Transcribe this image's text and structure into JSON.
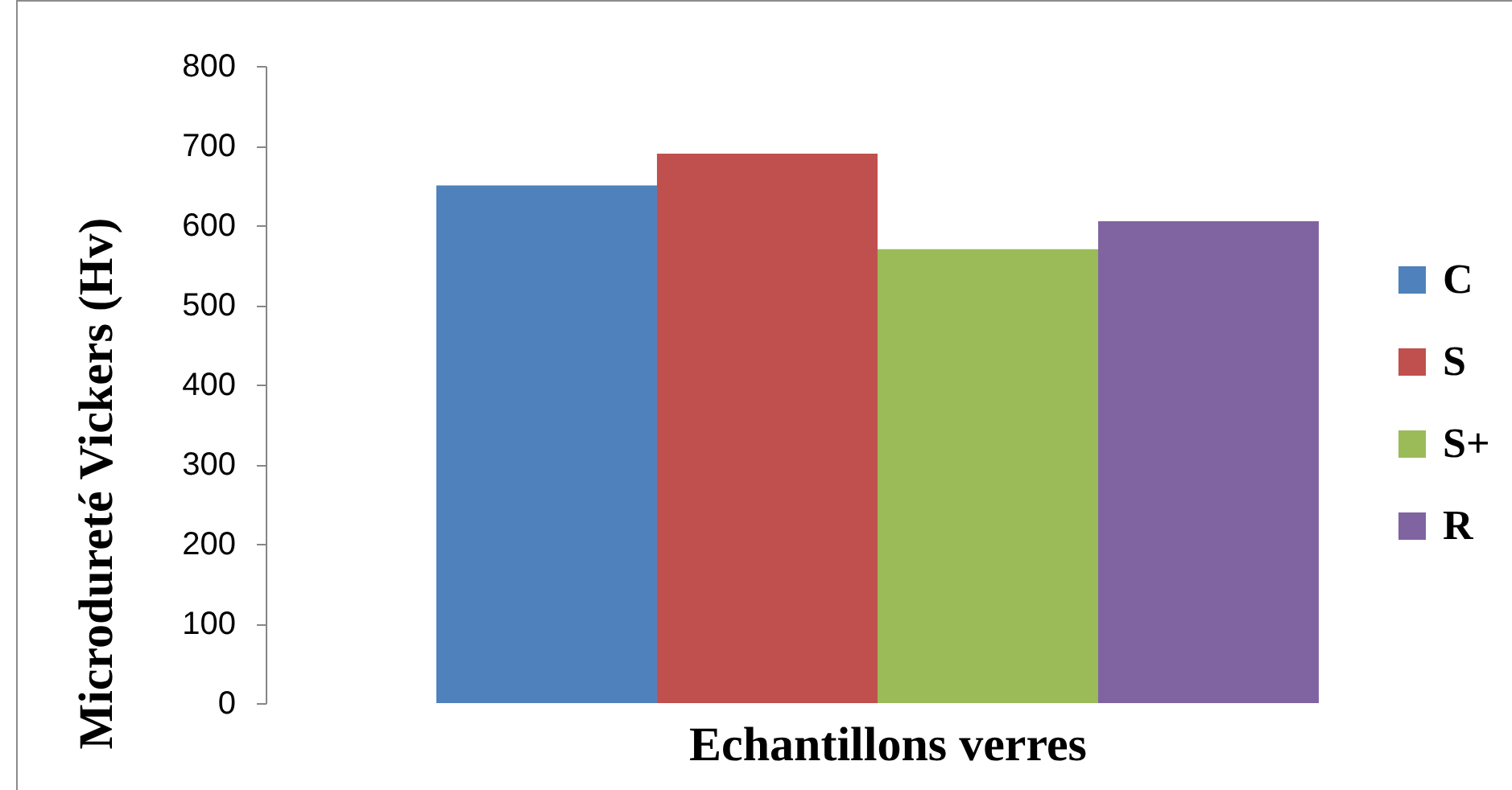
{
  "chart_data": {
    "type": "bar",
    "xlabel": "Echantillons verres",
    "ylabel": "Microdureté Vickers (Hv)",
    "categories": [
      null
    ],
    "series": [
      {
        "name": "C",
        "color": "#4f81bd",
        "values": [
          650
        ]
      },
      {
        "name": "S",
        "color": "#c0504d",
        "values": [
          690
        ]
      },
      {
        "name": "S+",
        "color": "#9bbb59",
        "values": [
          570
        ]
      },
      {
        "name": "R",
        "color": "#8064a2",
        "values": [
          605
        ]
      }
    ],
    "ylim": [
      0,
      800
    ],
    "yticks": [
      0,
      100,
      200,
      300,
      400,
      500,
      600,
      700,
      800
    ],
    "legend": "right"
  }
}
